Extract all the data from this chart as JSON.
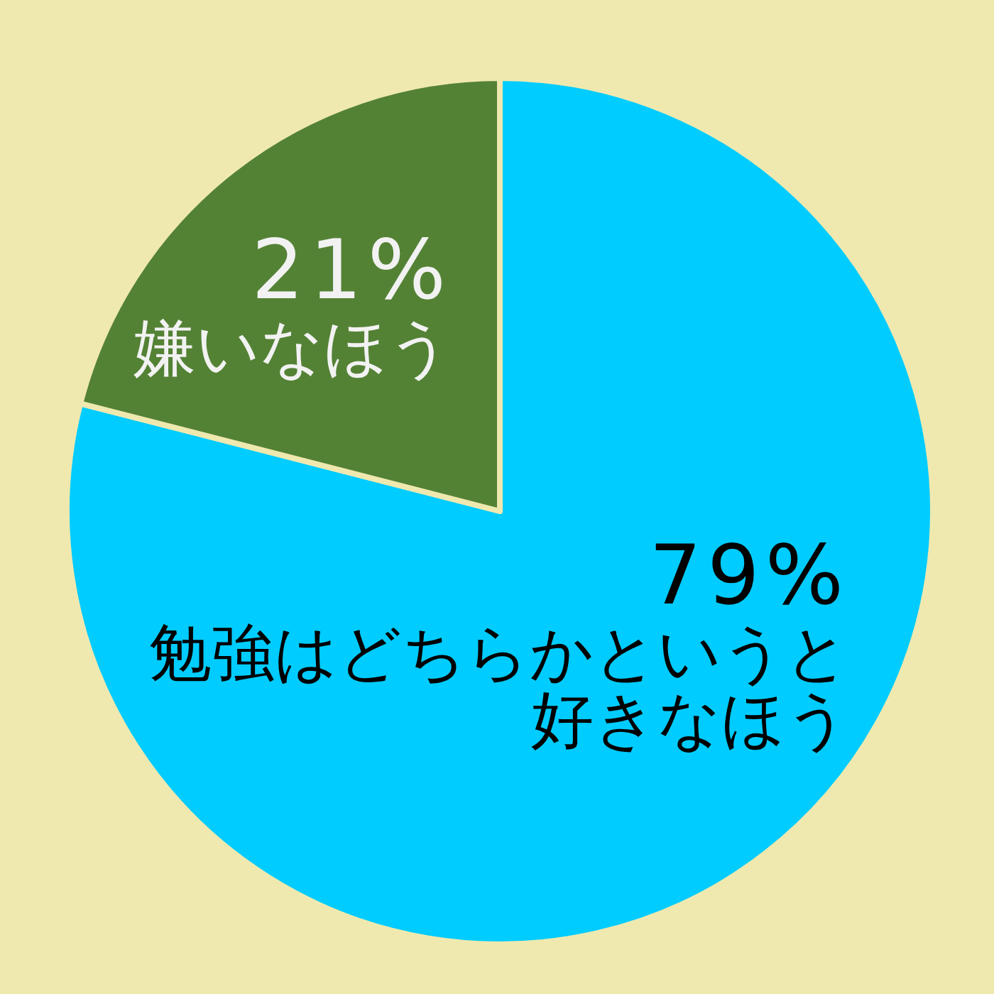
{
  "chart_data": {
    "type": "pie",
    "categories": [
      "勉強はどちらかというと好きなほう",
      "嫌いなほう"
    ],
    "values": [
      79,
      21
    ],
    "colors": [
      "#00ccff",
      "#548235"
    ],
    "value_labels": [
      "79%",
      "21%"
    ]
  }
}
